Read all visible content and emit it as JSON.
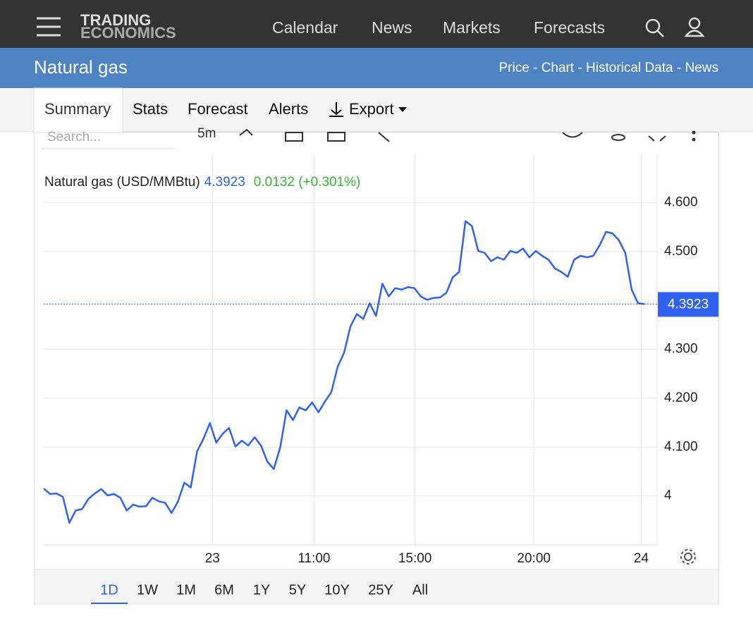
{
  "header": {
    "logo": [
      "TRADING",
      "ECONOMICS"
    ],
    "menu": [
      "Calendar",
      "News",
      "Markets",
      "Forecasts"
    ]
  },
  "subheader": {
    "title": "Natural gas",
    "links": [
      "Price",
      "Chart",
      "Historical Data",
      "News"
    ]
  },
  "tabs": [
    "Summary",
    "Stats",
    "Forecast",
    "Alerts",
    "Export"
  ],
  "toolbar": {
    "search": "Search...",
    "interval": "5m"
  },
  "ranges": [
    "1D",
    "1W",
    "1M",
    "6M",
    "1Y",
    "5Y",
    "10Y",
    "25Y",
    "All"
  ],
  "chart_data": {
    "type": "line",
    "legend_name": "Natural gas (USD/MMBtu)",
    "price": 4.3923,
    "change": "0.0132 (+0.301%)",
    "series": [
      {
        "name": "Natural gas",
        "color": "#2f62f0",
        "values": [
          4.015,
          4.004,
          4.005,
          3.998,
          3.945,
          3.97,
          3.973,
          3.994,
          4.005,
          4.014,
          4.001,
          4.004,
          3.996,
          3.97,
          3.982,
          3.978,
          3.979,
          3.996,
          3.989,
          3.986,
          3.965,
          3.988,
          4.027,
          4.017,
          4.091,
          4.117,
          4.149,
          4.109,
          4.127,
          4.139,
          4.101,
          4.113,
          4.103,
          4.12,
          4.103,
          4.07,
          4.055,
          4.099,
          4.175,
          4.155,
          4.181,
          4.175,
          4.191,
          4.171,
          4.193,
          4.212,
          4.264,
          4.293,
          4.347,
          4.372,
          4.362,
          4.394,
          4.368,
          4.434,
          4.408,
          4.425,
          4.422,
          4.427,
          4.425,
          4.408,
          4.401,
          4.405,
          4.406,
          4.415,
          4.447,
          4.458,
          4.562,
          4.552,
          4.501,
          4.497,
          4.48,
          4.488,
          4.483,
          4.501,
          4.497,
          4.506,
          4.488,
          4.501,
          4.491,
          4.483,
          4.465,
          4.458,
          4.448,
          4.483,
          4.491,
          4.488,
          4.491,
          4.513,
          4.54,
          4.537,
          4.523,
          4.497,
          4.422,
          4.394,
          4.3923
        ]
      }
    ],
    "ylim": [
      3.9,
      4.7
    ],
    "yticks": [
      4,
      {
        "value": 4.1,
        "label": "4.100"
      },
      {
        "value": 4.2,
        "label": "4.200"
      },
      {
        "value": 4.3,
        "label": "4.300"
      },
      {
        "value": 4.5,
        "label": "4.500"
      },
      {
        "value": 4.6,
        "label": "4.600"
      }
    ],
    "xticks": [
      {
        "value": 26.4,
        "label": "23"
      },
      {
        "value": 42.3,
        "label": "11:00"
      },
      {
        "value": 58.1,
        "label": "15:00"
      },
      {
        "value": 76.7,
        "label": "20:00"
      },
      {
        "value": 93.5,
        "label": "24"
      }
    ],
    "grid": true
  }
}
